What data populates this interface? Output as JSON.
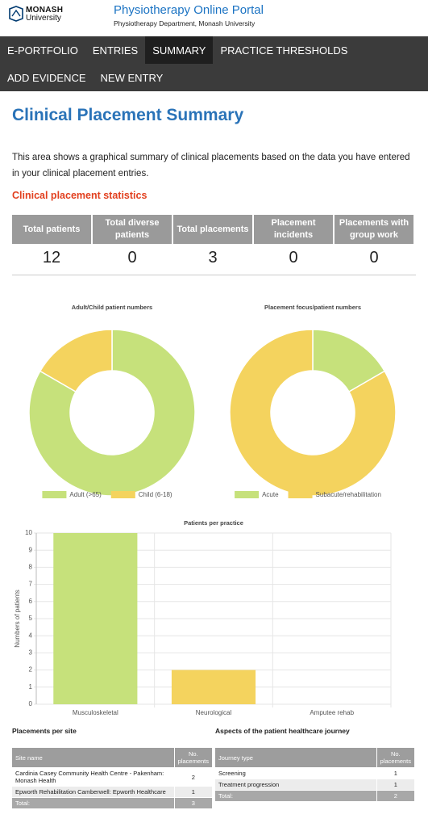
{
  "header": {
    "logo_top": "MONASH",
    "logo_bottom": "University",
    "title": "Physiotherapy Online Portal",
    "subtitle": "Physiotherapy Department, Monash University"
  },
  "nav": {
    "items": [
      "E-PORTFOLIO",
      "ENTRIES",
      "SUMMARY",
      "PRACTICE THRESHOLDS",
      "ADD EVIDENCE",
      "NEW ENTRY"
    ]
  },
  "page": {
    "title": "Clinical Placement Summary",
    "intro": "This area shows a graphical summary of clinical placements based on the data you have entered in your clinical placement entries.",
    "section": "Clinical placement statistics"
  },
  "stats": {
    "headers": [
      "Total patients",
      "Total diverse patients",
      "Total placements",
      "Placement incidents",
      "Placements with group work"
    ],
    "values": [
      12,
      0,
      3,
      0,
      0
    ]
  },
  "chart_data": [
    {
      "type": "donut",
      "title": "Adult/Child patient numbers",
      "categories": [
        "Adult (>65)",
        "Child (6-18)"
      ],
      "values": [
        10,
        2
      ],
      "colors": [
        "#c6e17b",
        "#f4d35e"
      ]
    },
    {
      "type": "donut",
      "title": "Placement focus/patient numbers",
      "categories": [
        "Acute",
        "Subacute/rehabilitation"
      ],
      "values": [
        2,
        10
      ],
      "colors": [
        "#c6e17b",
        "#f4d35e"
      ]
    },
    {
      "type": "bar",
      "title": "Patients per practice",
      "y_label": "Numbers of patients",
      "categories": [
        "Musculoskeletal",
        "Neurological",
        "Amputee rehab"
      ],
      "values": [
        10,
        2,
        0
      ],
      "colors": [
        "#c6e17b",
        "#f4d35e"
      ],
      "ylim": [
        0,
        10
      ],
      "yticks": [
        0,
        1,
        2,
        3,
        4,
        5,
        6,
        7,
        8,
        9,
        10
      ],
      "grid": true
    }
  ],
  "tables": [
    {
      "title": "Placements per site",
      "headers": [
        "Site name",
        "No. placements"
      ],
      "rows": [
        [
          "Cardinia Casey Community Health Centre - Pakenham: Monash Health",
          2
        ],
        [
          "Epworth Rehabilitation Camberwell: Epworth Healthcare",
          1
        ]
      ],
      "total": [
        "Total:",
        3
      ]
    },
    {
      "title": "Aspects of the patient healthcare journey",
      "headers": [
        "Journey type",
        "No. placements"
      ],
      "rows": [
        [
          "Screening",
          1
        ],
        [
          "Treatment progression",
          1
        ]
      ],
      "total": [
        "Total:",
        2
      ]
    }
  ]
}
